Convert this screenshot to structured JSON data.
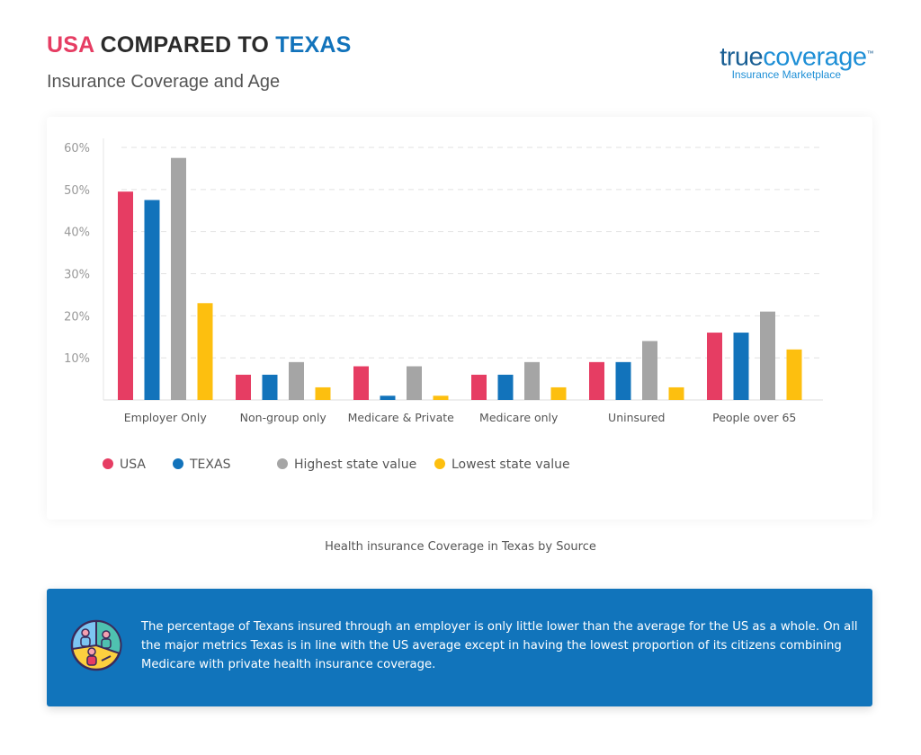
{
  "header": {
    "title_part1": "USA",
    "title_part2": "COMPARED TO",
    "title_part3": "TEXAS",
    "subtitle": "Insurance Coverage and Age"
  },
  "logo": {
    "text_true": "true",
    "text_coverage": "coverage",
    "tm": "™",
    "tagline": "Insurance Marketplace"
  },
  "caption": "Health insurance Coverage in Texas by Source",
  "info": {
    "icon": "people-pie-chart-icon",
    "text": "The percentage of Texans insured through an employer is only little  lower than the average for the US as a whole. On all the major metrics Texas is in line with the US average except in having the lowest proportion of  its citizens combining Medicare with private health insurance coverage."
  },
  "chart_data": {
    "type": "bar",
    "categories": [
      "Employer Only",
      "Non-group only",
      "Medicare & Private",
      "Medicare only",
      "Uninsured",
      "People over 65"
    ],
    "series": [
      {
        "name": "USA",
        "color": "#e63d63",
        "values": [
          49.5,
          6,
          8,
          6,
          9,
          16
        ]
      },
      {
        "name": "TEXAS",
        "color": "#1273bb",
        "values": [
          47.5,
          6,
          1,
          6,
          9,
          16
        ]
      },
      {
        "name": "Highest state value",
        "color": "#a5a5a5",
        "values": [
          57.5,
          9,
          8,
          9,
          14,
          21
        ]
      },
      {
        "name": "Lowest state value",
        "color": "#fdbf0f",
        "values": [
          23,
          3,
          1,
          3,
          3,
          12
        ]
      }
    ],
    "ylim": [
      0,
      60
    ],
    "yticks": [
      "10%",
      "20%",
      "30%",
      "40%",
      "50%",
      "60%"
    ],
    "grid": true,
    "legend": "bottom-left"
  }
}
